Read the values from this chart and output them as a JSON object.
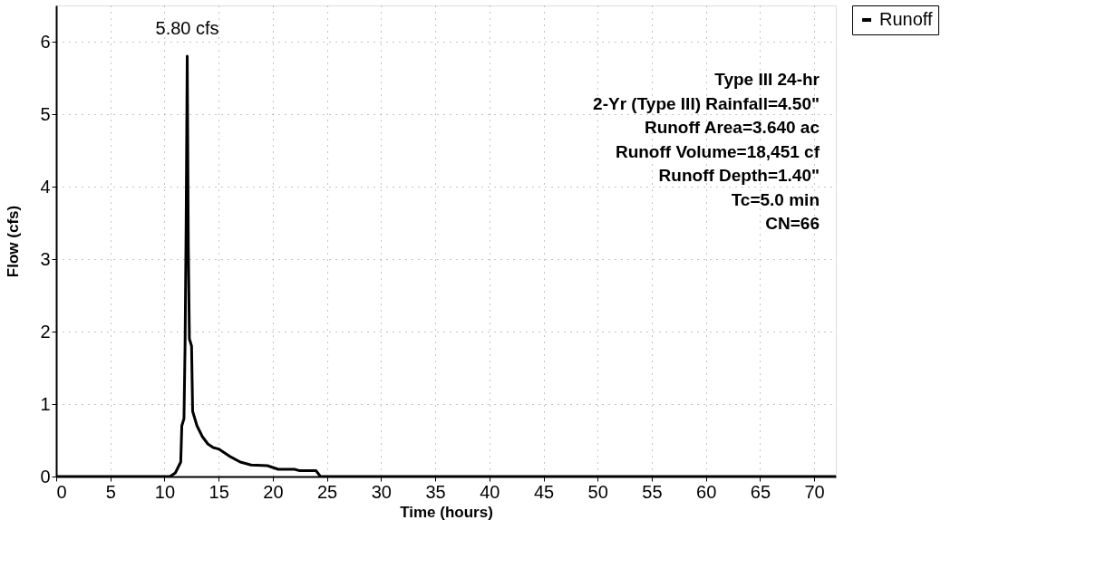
{
  "chart_data": {
    "type": "line",
    "xlabel": "Time  (hours)",
    "ylabel": "Flow  (cfs)",
    "x": [
      0,
      10.5,
      11,
      11.5,
      11.6,
      11.8,
      11.9,
      12.0,
      12.1,
      12.2,
      12.3,
      12.5,
      12.6,
      13,
      13.5,
      14,
      14.5,
      15,
      16,
      17,
      18,
      19.5,
      20.5,
      22,
      22.5,
      24,
      24.4,
      72
    ],
    "series": [
      {
        "name": "Runoff",
        "color": "#000000",
        "values": [
          0,
          0,
          0.05,
          0.2,
          0.7,
          0.8,
          1.8,
          3.5,
          5.8,
          3.2,
          1.9,
          1.8,
          0.9,
          0.7,
          0.55,
          0.45,
          0.4,
          0.38,
          0.28,
          0.2,
          0.16,
          0.15,
          0.1,
          0.1,
          0.08,
          0.08,
          0,
          0
        ]
      }
    ],
    "xlim": [
      0,
      72
    ],
    "xticks": [
      0,
      5,
      10,
      15,
      20,
      25,
      30,
      35,
      40,
      45,
      50,
      55,
      60,
      65,
      70
    ],
    "ylim": [
      0,
      6.5
    ],
    "yticks": [
      0,
      1,
      2,
      3,
      4,
      5,
      6
    ],
    "annotations": [
      {
        "text": "5.80 cfs",
        "x": 12.1,
        "y": 5.8
      },
      "Type III 24-hr",
      "2-Yr (Type III) Rainfall=4.50\"",
      "Runoff Area=3.640 ac",
      "Runoff Volume=18,451 cf",
      "Runoff Depth=1.40\"",
      "Tc=5.0 min",
      "CN=66"
    ],
    "grid": true,
    "legend": "top right",
    "line_style": "solid",
    "marker": "none"
  }
}
